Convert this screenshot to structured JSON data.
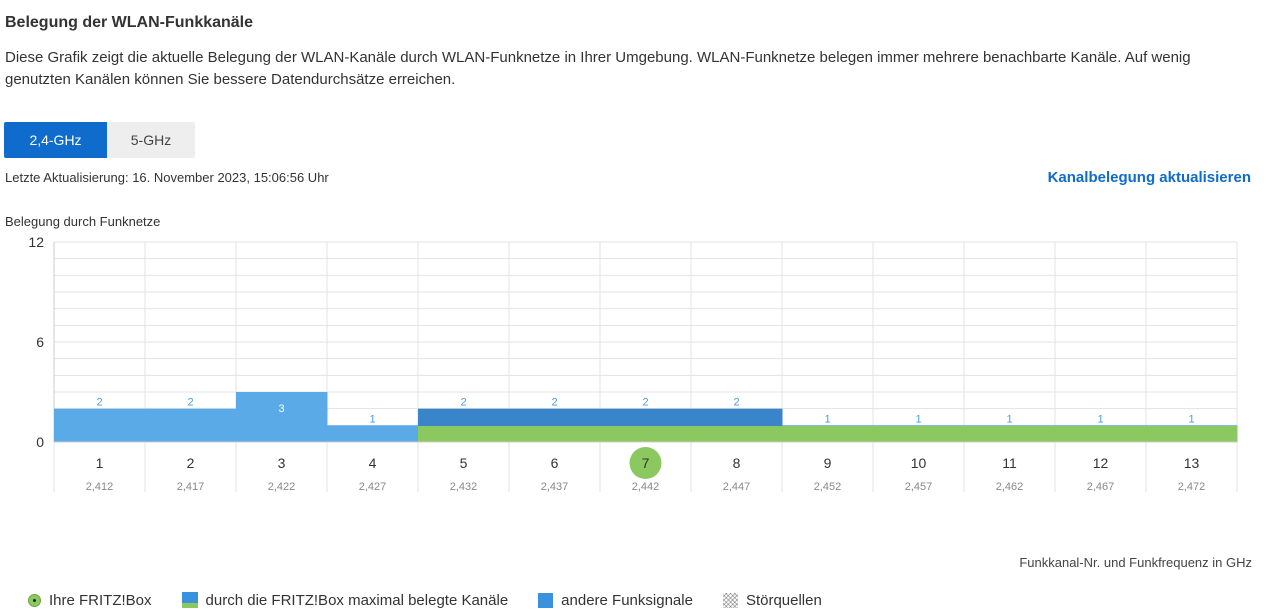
{
  "page": {
    "title": "Belegung der WLAN-Funkkanäle",
    "description": "Diese Grafik zeigt die aktuelle Belegung der WLAN-Kanäle durch WLAN-Funknetze in Ihrer Umgebung. WLAN-Funknetze belegen immer mehrere benachbarte Kanäle. Auf wenig genutzten Kanälen können Sie bessere Datendurchsätze erreichen."
  },
  "tabs": [
    {
      "label": "2,4-GHz",
      "active": true
    },
    {
      "label": "5-GHz",
      "active": false
    }
  ],
  "status": {
    "last_update": "Letzte Aktualisierung: 16. November 2023, 15:06:56 Uhr",
    "refresh_link": "Kanalbelegung aktualisieren"
  },
  "chart_data": {
    "type": "bar",
    "ylabel": "Belegung durch Funknetze",
    "xlabel": "Funkkanal-Nr. und Funkfrequenz in GHz",
    "ylim": [
      0,
      12
    ],
    "yticks": [
      0,
      6,
      12
    ],
    "grid": true,
    "channels": [
      "1",
      "2",
      "3",
      "4",
      "5",
      "6",
      "7",
      "8",
      "9",
      "10",
      "11",
      "12",
      "13"
    ],
    "frequencies": [
      "2,412",
      "2,417",
      "2,422",
      "2,427",
      "2,432",
      "2,437",
      "2,442",
      "2,447",
      "2,452",
      "2,457",
      "2,462",
      "2,467",
      "2,472"
    ],
    "values": [
      2,
      2,
      3,
      1,
      2,
      2,
      2,
      2,
      1,
      1,
      1,
      1,
      1
    ],
    "fritzbox_occupied": [
      false,
      false,
      false,
      false,
      true,
      true,
      true,
      true,
      true,
      true,
      true,
      true,
      true
    ],
    "fritzbox_peak_channels": [
      5,
      6,
      7,
      8
    ],
    "fritzbox_channel": 7,
    "colors": {
      "other": "#5aaae8",
      "fritzbox_peak": "#3a84c9",
      "fritzbox_own": "#8bc960",
      "label": "#4a9ee0",
      "grid": "#e3e3e3"
    }
  },
  "legend": [
    {
      "label": "Ihre FRITZ!Box",
      "icon": "fritzbox-dot-icon"
    },
    {
      "label": "durch die FRITZ!Box maximal belegte Kanäle",
      "icon": "max-channels-swatch"
    },
    {
      "label": "andere Funksignale",
      "icon": "other-signals-swatch"
    },
    {
      "label": "Störquellen",
      "icon": "interference-swatch"
    }
  ]
}
